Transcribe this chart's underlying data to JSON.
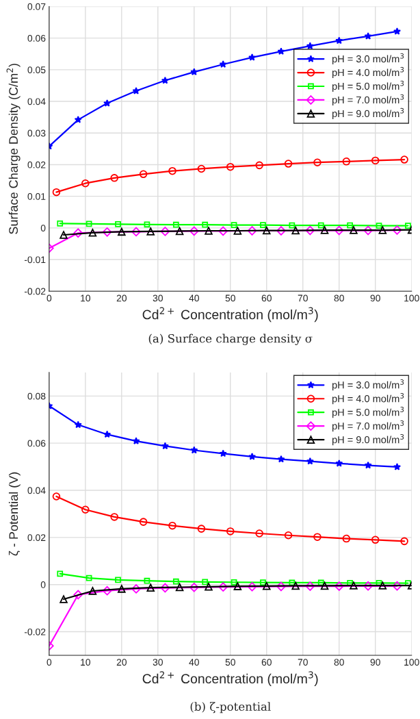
{
  "chart_data": [
    {
      "type": "line",
      "title": "(a) Surface charge density σ",
      "xlabel": "Cd$^{2+}$ Concentration (mol/m$^{3}$)",
      "ylabel": "Surface Charge Density (C/m$^{2}$)",
      "xlim": [
        0,
        100
      ],
      "xticks": [
        0,
        10,
        20,
        30,
        40,
        50,
        60,
        70,
        80,
        90,
        100
      ],
      "ylim": [
        -0.02,
        0.07
      ],
      "yticks": [
        -0.02,
        -0.01,
        0,
        0.01,
        0.02,
        0.03,
        0.04,
        0.05,
        0.06,
        0.07
      ],
      "grid": true,
      "legend": "right",
      "series": [
        {
          "name": "pH = 3.0 mol/m$^{3}$",
          "color": "#0000ff",
          "marker": "star",
          "x": [
            0,
            8,
            16,
            24,
            32,
            40,
            48,
            56,
            64,
            72,
            80,
            88,
            96
          ],
          "values": [
            0.0258,
            0.0342,
            0.0394,
            0.0433,
            0.0466,
            0.0493,
            0.0517,
            0.0539,
            0.0558,
            0.0575,
            0.0592,
            0.0606,
            0.0621
          ]
        },
        {
          "name": "pH = 4.0 mol/m$^{3}$",
          "color": "#ff0000",
          "marker": "circle",
          "x": [
            2,
            10,
            18,
            26,
            34,
            42,
            50,
            58,
            66,
            74,
            82,
            90,
            98
          ],
          "values": [
            0.0113,
            0.0141,
            0.0158,
            0.017,
            0.018,
            0.0187,
            0.0193,
            0.0198,
            0.0203,
            0.0207,
            0.021,
            0.0213,
            0.0216
          ]
        },
        {
          "name": "pH = 5.0 mol/m$^{3}$",
          "color": "#00ff00",
          "marker": "square",
          "x": [
            3,
            11,
            19,
            27,
            35,
            43,
            51,
            59,
            67,
            75,
            83,
            91,
            99
          ],
          "values": [
            0.0014,
            0.0013,
            0.0012,
            0.0011,
            0.001,
            0.001,
            0.0009,
            0.0009,
            0.0008,
            0.0008,
            0.0008,
            0.0007,
            0.0007
          ]
        },
        {
          "name": "pH = 7.0 mol/m$^{3}$",
          "color": "#ff00ff",
          "marker": "diamond",
          "x": [
            0,
            8,
            16,
            24,
            32,
            40,
            48,
            56,
            64,
            72,
            80,
            88,
            96
          ],
          "values": [
            -0.0064,
            -0.0016,
            -0.0013,
            -0.0012,
            -0.0011,
            -0.001,
            -0.001,
            -0.0009,
            -0.0009,
            -0.0008,
            -0.0008,
            -0.0008,
            -0.0007
          ]
        },
        {
          "name": "pH = 9.0 mol/m$^{3}$",
          "color": "#000000",
          "marker": "triangle",
          "x": [
            4,
            12,
            20,
            28,
            36,
            44,
            52,
            60,
            68,
            76,
            84,
            92,
            100
          ],
          "values": [
            -0.0022,
            -0.0015,
            -0.0012,
            -0.0011,
            -0.001,
            -0.0009,
            -0.0009,
            -0.0008,
            -0.0008,
            -0.0007,
            -0.0007,
            -0.0007,
            -0.0006
          ]
        }
      ]
    },
    {
      "type": "line",
      "title": "(b) ζ-potential",
      "xlabel": "Cd$^{2+}$ Concentration (mol/m$^{3}$)",
      "ylabel": "ζ - Potential (V)",
      "xlim": [
        0,
        100
      ],
      "xticks": [
        0,
        10,
        20,
        30,
        40,
        50,
        60,
        70,
        80,
        90,
        100
      ],
      "ylim": [
        -0.03,
        0.09
      ],
      "yticks": [
        -0.02,
        0,
        0.02,
        0.04,
        0.06,
        0.08
      ],
      "grid": true,
      "legend": "top right",
      "series": [
        {
          "name": "pH = 3.0 mol/m$^{3}$",
          "color": "#0000ff",
          "marker": "star",
          "x": [
            0,
            8,
            16,
            24,
            32,
            40,
            48,
            56,
            64,
            72,
            80,
            88,
            96
          ],
          "values": [
            0.0758,
            0.0678,
            0.0637,
            0.0609,
            0.0588,
            0.057,
            0.0556,
            0.0543,
            0.0532,
            0.0523,
            0.0514,
            0.0506,
            0.0499
          ]
        },
        {
          "name": "pH = 4.0 mol/m$^{3}$",
          "color": "#ff0000",
          "marker": "circle",
          "x": [
            2,
            10,
            18,
            26,
            34,
            42,
            50,
            58,
            66,
            74,
            82,
            90,
            98
          ],
          "values": [
            0.0374,
            0.0318,
            0.0287,
            0.0266,
            0.025,
            0.0237,
            0.0226,
            0.0217,
            0.0209,
            0.0202,
            0.0195,
            0.019,
            0.0184
          ]
        },
        {
          "name": "pH = 5.0 mol/m$^{3}$",
          "color": "#00ff00",
          "marker": "square",
          "x": [
            3,
            11,
            19,
            27,
            35,
            43,
            51,
            59,
            67,
            75,
            83,
            91,
            99
          ],
          "values": [
            0.0046,
            0.0028,
            0.002,
            0.0016,
            0.0013,
            0.0011,
            0.001,
            0.0009,
            0.0008,
            0.0008,
            0.0007,
            0.0007,
            0.0006
          ]
        },
        {
          "name": "pH = 7.0 mol/m$^{3}$",
          "color": "#ff00ff",
          "marker": "diamond",
          "x": [
            0,
            8,
            16,
            24,
            32,
            40,
            48,
            56,
            64,
            72,
            80,
            88,
            96
          ],
          "values": [
            -0.026,
            -0.0043,
            -0.0026,
            -0.0018,
            -0.0014,
            -0.0012,
            -0.001,
            -0.0009,
            -0.0008,
            -0.0007,
            -0.0007,
            -0.0006,
            -0.0006
          ]
        },
        {
          "name": "pH = 9.0 mol/m$^{3}$",
          "color": "#000000",
          "marker": "triangle",
          "x": [
            4,
            12,
            20,
            28,
            36,
            44,
            52,
            60,
            68,
            76,
            84,
            92,
            100
          ],
          "values": [
            -0.0062,
            -0.0027,
            -0.0018,
            -0.0013,
            -0.0011,
            -0.0009,
            -0.0007,
            -0.0006,
            -0.0005,
            -0.0005,
            -0.0004,
            -0.0004,
            -0.0004
          ]
        }
      ]
    }
  ]
}
